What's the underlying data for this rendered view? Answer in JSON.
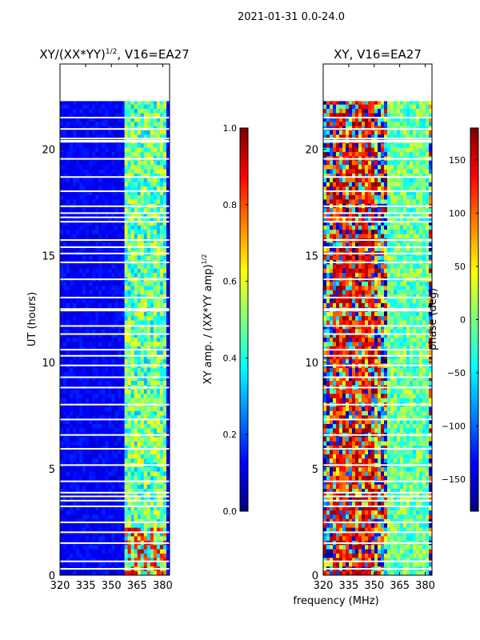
{
  "figure": {
    "suptitle": "2021-01-31 0.0-24.0",
    "xlabel": "frequency (MHz)"
  },
  "colors": {
    "jet": [
      "#00007f",
      "#0000ff",
      "#0080ff",
      "#00ffff",
      "#80ff80",
      "#ffff00",
      "#ff8000",
      "#ff0000",
      "#7f0000"
    ],
    "background": "#ffffff"
  },
  "chart_data": [
    {
      "type": "heatmap",
      "title": "XY/(XX*YY)",
      "title_exponent": "1/2",
      "title_suffix": ", V16=EA27",
      "xlabel": "",
      "ylabel": "UT (hours)",
      "xlim": [
        320,
        384
      ],
      "ylim": [
        0,
        24
      ],
      "xticks": [
        320,
        335,
        350,
        365,
        380
      ],
      "yticks": [
        0,
        5,
        10,
        15,
        20
      ],
      "data_ylim": [
        0,
        22.3
      ],
      "colorbar": {
        "label": "XY amp. / (XX*YY amp)",
        "label_exponent": "1/2",
        "range": [
          0.0,
          1.0
        ],
        "ticks": [
          "0.0",
          "0.2",
          "0.4",
          "0.6",
          "0.8",
          "1.0"
        ]
      }
    },
    {
      "type": "heatmap",
      "title": "XY, V16=EA27",
      "xlabel": "frequency (MHz)",
      "ylabel": "",
      "xlim": [
        320,
        384
      ],
      "ylim": [
        0,
        24
      ],
      "xticks": [
        320,
        335,
        350,
        365,
        380
      ],
      "yticks": [
        0,
        5,
        10,
        15,
        20
      ],
      "data_ylim": [
        0,
        22.3
      ],
      "colorbar": {
        "label": "phase (deg)",
        "range": [
          -180,
          180
        ],
        "ticks": [
          "150",
          "100",
          "50",
          "0",
          "−50",
          "−100",
          "−150"
        ]
      }
    }
  ]
}
